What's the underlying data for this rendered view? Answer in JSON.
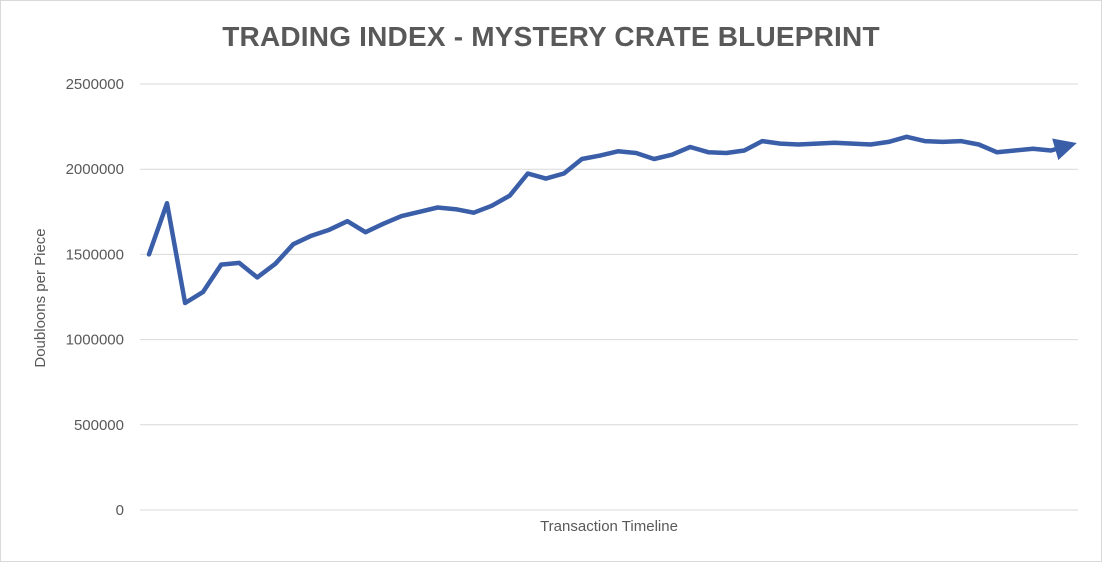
{
  "chart_data": {
    "type": "line",
    "title": "TRADING INDEX - MYSTERY CRATE BLUEPRINT",
    "xlabel": "Transaction Timeline",
    "ylabel": "Doubloons per Piece",
    "ylim": [
      0,
      2500000
    ],
    "yticks": [
      0,
      500000,
      1000000,
      1500000,
      2000000,
      2500000
    ],
    "ytick_labels": [
      "0",
      "500000",
      "1000000",
      "1500000",
      "2000000",
      "2500000"
    ],
    "grid": true,
    "legend": "none",
    "line_color": "#3A5EA8",
    "end_marker": "arrow",
    "series": [
      {
        "values": [
          1500000,
          1800000,
          1215000,
          1280000,
          1440000,
          1450000,
          1365000,
          1445000,
          1560000,
          1610000,
          1645000,
          1695000,
          1630000,
          1680000,
          1725000,
          1750000,
          1775000,
          1765000,
          1745000,
          1785000,
          1845000,
          1975000,
          1945000,
          1975000,
          2060000,
          2080000,
          2105000,
          2095000,
          2060000,
          2085000,
          2130000,
          2100000,
          2095000,
          2110000,
          2165000,
          2150000,
          2145000,
          2150000,
          2155000,
          2150000,
          2145000,
          2160000,
          2190000,
          2165000,
          2160000,
          2165000,
          2145000,
          2100000,
          2110000,
          2120000,
          2110000,
          2140000
        ]
      }
    ]
  }
}
